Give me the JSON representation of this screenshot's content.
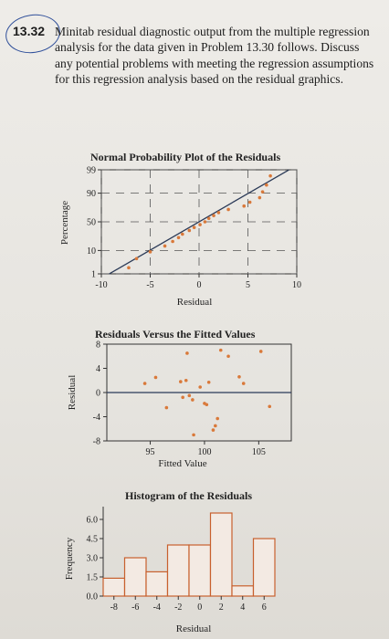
{
  "problem": {
    "number": "13.32",
    "text": "Minitab residual diagnostic output from the multiple regression analysis for the data given in Problem 13.30 follows. Discuss any potential problems with meeting the regression assumptions for this regression analysis based on the residual graphics."
  },
  "colors": {
    "ink": "#222222",
    "marker": "#d9793a",
    "bar_fill": "#f3eae3",
    "bar_stroke": "#c8602e",
    "annotation": "#2f4f9a"
  },
  "chart_data": [
    {
      "type": "scatter",
      "title": "Normal Probability Plot of the Residuals",
      "xlabel": "Residual",
      "ylabel": "Percentage",
      "xticks": [
        "-10",
        "-5",
        "0",
        "5",
        "10"
      ],
      "yticks": [
        "1",
        "10",
        "50",
        "90",
        "99"
      ],
      "xlim": [
        -10,
        10
      ],
      "ylim": [
        1,
        99
      ],
      "yscale": "normal-probability",
      "grid": true,
      "points": [
        {
          "x": -7.2,
          "y": 2.0
        },
        {
          "x": -6.4,
          "y": 5.0
        },
        {
          "x": -5.0,
          "y": 9.0
        },
        {
          "x": -3.5,
          "y": 14.0
        },
        {
          "x": -2.7,
          "y": 19.0
        },
        {
          "x": -2.1,
          "y": 24.0
        },
        {
          "x": -1.7,
          "y": 29.0
        },
        {
          "x": -1.0,
          "y": 35.0
        },
        {
          "x": -0.5,
          "y": 40.0
        },
        {
          "x": 0.1,
          "y": 45.0
        },
        {
          "x": 0.6,
          "y": 50.0
        },
        {
          "x": 1.0,
          "y": 56.0
        },
        {
          "x": 1.5,
          "y": 61.0
        },
        {
          "x": 2.0,
          "y": 66.0
        },
        {
          "x": 3.0,
          "y": 71.0
        },
        {
          "x": 4.6,
          "y": 76.0
        },
        {
          "x": 5.2,
          "y": 81.0
        },
        {
          "x": 6.2,
          "y": 86.0
        },
        {
          "x": 6.5,
          "y": 91.0
        },
        {
          "x": 6.9,
          "y": 95.0
        },
        {
          "x": 7.3,
          "y": 98.0
        }
      ],
      "fit_line": [
        {
          "x": -9.2,
          "y": 1.0
        },
        {
          "x": 9.2,
          "y": 99.0
        }
      ]
    },
    {
      "type": "scatter",
      "title": "Residuals Versus the Fitted Values",
      "xlabel": "Fitted Value",
      "ylabel": "Residual",
      "xticks": [
        "95",
        "100",
        "105"
      ],
      "yticks": [
        "8",
        "4",
        "0",
        "-4",
        "-8"
      ],
      "xlim": [
        91.0,
        108.0
      ],
      "ylim": [
        -8,
        8
      ],
      "reference_line_y": 0,
      "points": [
        {
          "x": 94.5,
          "y": 1.5
        },
        {
          "x": 95.5,
          "y": 2.5
        },
        {
          "x": 96.5,
          "y": -2.5
        },
        {
          "x": 97.8,
          "y": 1.8
        },
        {
          "x": 98.0,
          "y": -0.8
        },
        {
          "x": 98.3,
          "y": 2.0
        },
        {
          "x": 98.6,
          "y": -0.5
        },
        {
          "x": 98.9,
          "y": -1.2
        },
        {
          "x": 98.4,
          "y": 6.5
        },
        {
          "x": 99.0,
          "y": -7.0
        },
        {
          "x": 99.6,
          "y": 0.9
        },
        {
          "x": 100.0,
          "y": -1.8
        },
        {
          "x": 100.2,
          "y": -2.0
        },
        {
          "x": 100.4,
          "y": 1.7
        },
        {
          "x": 100.8,
          "y": -6.2
        },
        {
          "x": 101.0,
          "y": -5.5
        },
        {
          "x": 101.2,
          "y": -4.3
        },
        {
          "x": 101.5,
          "y": 7.0
        },
        {
          "x": 102.2,
          "y": 6.0
        },
        {
          "x": 103.2,
          "y": 2.6
        },
        {
          "x": 103.6,
          "y": 1.5
        },
        {
          "x": 105.2,
          "y": 6.8
        },
        {
          "x": 106.0,
          "y": -2.3
        }
      ]
    },
    {
      "type": "bar",
      "title": "Histogram of the Residuals",
      "xlabel": "Residual",
      "ylabel": "Frequency",
      "xticks": [
        "-8",
        "-6",
        "-4",
        "-2",
        "0",
        "2",
        "4",
        "6"
      ],
      "yticks": [
        "6.0",
        "4.5",
        "3.0",
        "1.5",
        "0.0"
      ],
      "ylim": [
        0,
        7
      ],
      "bin_width": 2,
      "bins": [
        {
          "start": -9,
          "end": -7,
          "value": 1.4
        },
        {
          "start": -7,
          "end": -5,
          "value": 3.0
        },
        {
          "start": -5,
          "end": -3,
          "value": 1.9
        },
        {
          "start": -3,
          "end": -1,
          "value": 4.0
        },
        {
          "start": -1,
          "end": 1,
          "value": 4.0
        },
        {
          "start": 1,
          "end": 3,
          "value": 6.5
        },
        {
          "start": 3,
          "end": 5,
          "value": 0.8
        },
        {
          "start": 5,
          "end": 7,
          "value": 4.5
        }
      ]
    }
  ]
}
